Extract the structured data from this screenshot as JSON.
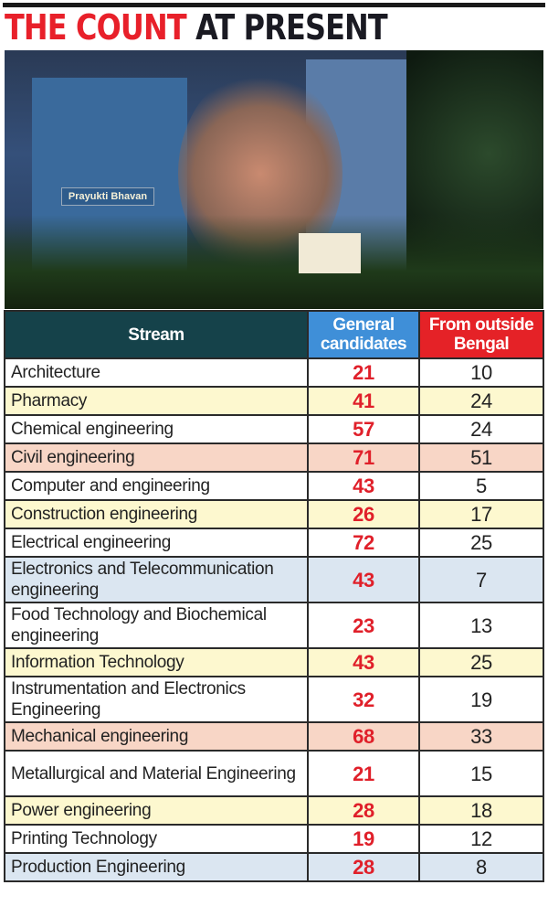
{
  "title": {
    "part1": "THE COUNT",
    "part2": "AT PRESENT"
  },
  "photo": {
    "sign_text": "Prayukti Bhavan"
  },
  "colors": {
    "title_red": "#e8202a",
    "header_stream": "#15424a",
    "header_general": "#3f8fd8",
    "header_outside": "#e52227",
    "row_yellow": "#fdf8cf",
    "row_pink": "#f8d6c6",
    "row_blue": "#dbe6f1"
  },
  "chart_data": {
    "type": "table",
    "columns": [
      "Stream",
      "General candidates",
      "From outside Bengal"
    ],
    "rows": [
      {
        "stream": "Architecture",
        "general": 21,
        "outside": 10,
        "shade": "white"
      },
      {
        "stream": "Pharmacy",
        "general": 41,
        "outside": 24,
        "shade": "yellow"
      },
      {
        "stream": "Chemical engineering",
        "general": 57,
        "outside": 24,
        "shade": "white"
      },
      {
        "stream": "Civil engineering",
        "general": 71,
        "outside": 51,
        "shade": "pink"
      },
      {
        "stream": "Computer and engineering",
        "general": 43,
        "outside": 5,
        "shade": "white"
      },
      {
        "stream": "Construction engineering",
        "general": 26,
        "outside": 17,
        "shade": "yellow"
      },
      {
        "stream": "Electrical engineering",
        "general": 72,
        "outside": 25,
        "shade": "white"
      },
      {
        "stream": "Electronics and Telecommunication engineering",
        "general": 43,
        "outside": 7,
        "shade": "blue"
      },
      {
        "stream": "Food Technology and Biochemical engineering",
        "general": 23,
        "outside": 13,
        "shade": "white"
      },
      {
        "stream": "Information Technology",
        "general": 43,
        "outside": 25,
        "shade": "yellow"
      },
      {
        "stream": "Instrumentation and Electronics Engineering",
        "general": 32,
        "outside": 19,
        "shade": "white"
      },
      {
        "stream": "Mechanical engineering",
        "general": 68,
        "outside": 33,
        "shade": "pink"
      },
      {
        "stream": "Metallurgical and Material Engineering",
        "general": 21,
        "outside": 15,
        "shade": "white"
      },
      {
        "stream": "Power engineering",
        "general": 28,
        "outside": 18,
        "shade": "yellow"
      },
      {
        "stream": "Printing Technology",
        "general": 19,
        "outside": 12,
        "shade": "white"
      },
      {
        "stream": "Production Engineering",
        "general": 28,
        "outside": 8,
        "shade": "blue"
      }
    ]
  }
}
